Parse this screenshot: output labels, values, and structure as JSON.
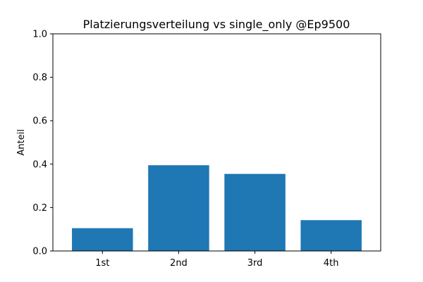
{
  "chart_data": {
    "type": "bar",
    "title": "Platzierungsverteilung vs single_only @Ep9500",
    "xlabel": "",
    "ylabel": "Anteil",
    "categories": [
      "1st",
      "2nd",
      "3rd",
      "4th"
    ],
    "values": [
      0.105,
      0.395,
      0.355,
      0.142
    ],
    "ylim": [
      0.0,
      1.0
    ],
    "yticks": [
      "0.0",
      "0.2",
      "0.4",
      "0.6",
      "0.8",
      "1.0"
    ],
    "bar_color": "#1f77b4",
    "grid": false,
    "legend": "none"
  }
}
